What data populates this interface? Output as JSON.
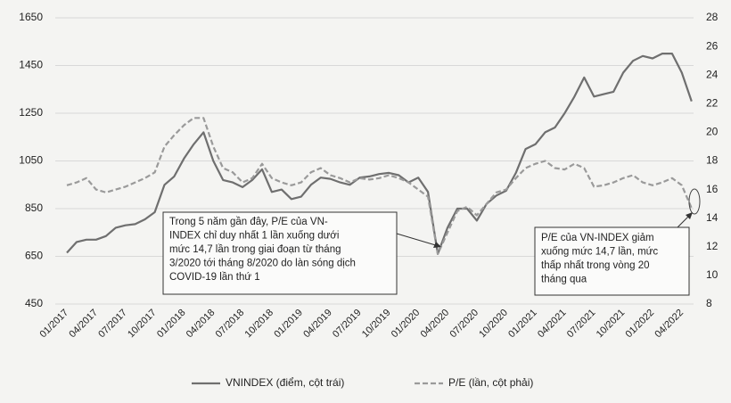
{
  "chart_data": {
    "type": "line",
    "categories": [
      "01/2017",
      null,
      null,
      "04/2017",
      null,
      null,
      "07/2017",
      null,
      null,
      "10/2017",
      null,
      null,
      "01/2018",
      null,
      null,
      "04/2018",
      null,
      null,
      "07/2018",
      null,
      null,
      "10/2018",
      null,
      null,
      "01/2019",
      null,
      null,
      "04/2019",
      null,
      null,
      "07/2019",
      null,
      null,
      "10/2019",
      null,
      null,
      "01/2020",
      null,
      null,
      "04/2020",
      null,
      null,
      "07/2020",
      null,
      null,
      "10/2020",
      null,
      null,
      "01/2021",
      null,
      null,
      "04/2021",
      null,
      null,
      "07/2021",
      null,
      null,
      "10/2021",
      null,
      null,
      "01/2022",
      null,
      null,
      "04/2022",
      null
    ],
    "series": [
      {
        "name": "VNINDEX (điểm, cột trái)",
        "color": "#6f6f6f",
        "axis": "y",
        "values": [
          665,
          710,
          720,
          720,
          735,
          770,
          780,
          785,
          805,
          835,
          950,
          985,
          1060,
          1120,
          1170,
          1050,
          970,
          960,
          940,
          970,
          1015,
          920,
          930,
          890,
          900,
          950,
          980,
          975,
          960,
          950,
          980,
          985,
          995,
          1000,
          990,
          960,
          980,
          920,
          660,
          770,
          850,
          850,
          800,
          870,
          905,
          925,
          1000,
          1100,
          1120,
          1170,
          1190,
          1250,
          1320,
          1400,
          1320,
          1330,
          1340,
          1420,
          1470,
          1490,
          1480,
          1500,
          1500,
          1420,
          1300
        ]
      },
      {
        "name": "P/E (lần, cột phải)",
        "color": "#9a9a9a",
        "axis": "y2",
        "dashed": true,
        "values": [
          16.3,
          16.5,
          16.8,
          16.0,
          15.8,
          16.0,
          16.2,
          16.5,
          16.8,
          17.2,
          19,
          19.8,
          20.5,
          21.0,
          21.0,
          19,
          17.5,
          17.2,
          16.5,
          16.8,
          17.8,
          16.8,
          16.5,
          16.3,
          16.5,
          17.2,
          17.5,
          17.0,
          16.8,
          16.5,
          16.8,
          16.7,
          16.8,
          17.0,
          16.8,
          16.5,
          16.0,
          15.5,
          11.5,
          13.0,
          14.5,
          14.8,
          14.2,
          15.0,
          15.8,
          16.0,
          16.8,
          17.5,
          17.8,
          18.0,
          17.5,
          17.4,
          17.8,
          17.5,
          16.2,
          16.3,
          16.5,
          16.8,
          17.0,
          16.5,
          16.3,
          16.5,
          16.8,
          16.3,
          14.7
        ]
      }
    ],
    "ylim": [
      450,
      1650
    ],
    "yticks": [
      450,
      650,
      850,
      1050,
      1250,
      1450,
      1650
    ],
    "y2lim": [
      8,
      28
    ],
    "y2ticks": [
      8,
      10,
      12,
      14,
      16,
      18,
      20,
      22,
      24,
      26,
      28
    ],
    "grid": true,
    "annotations": [
      {
        "lines": [
          "Trong 5 năm gần đây, P/E của VN-",
          "INDEX chỉ duy nhất 1 lần xuống dưới",
          "mức 14,7 lần trong giai đoạn từ tháng",
          "3/2020 tới tháng 8/2020 do làn sóng dịch",
          "COVID-19 lần thứ 1"
        ]
      },
      {
        "lines": [
          "P/E của VN-INDEX giảm",
          "xuống mức 14,7 lần, mức",
          "thấp nhất trong vòng 20",
          "tháng qua"
        ]
      }
    ]
  }
}
